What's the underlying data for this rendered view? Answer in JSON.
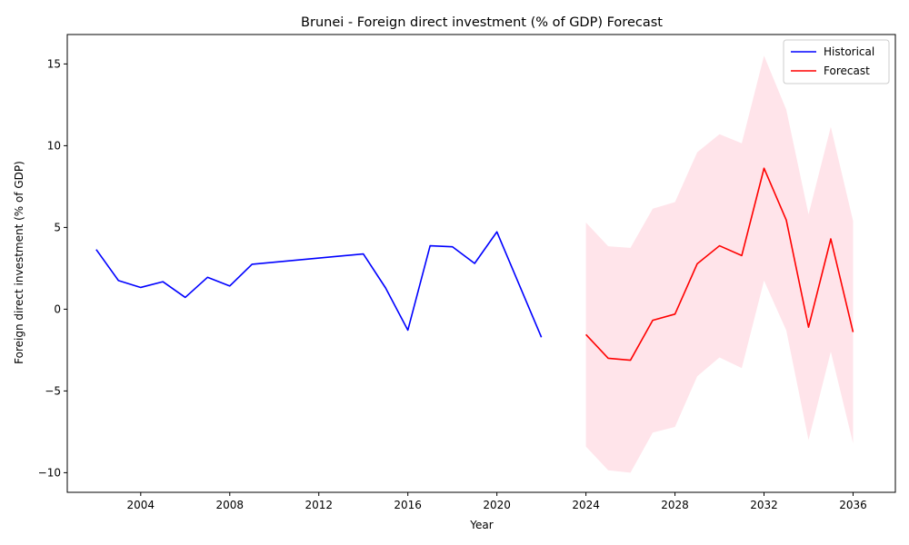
{
  "chart_data": {
    "type": "line",
    "title": "Brunei - Foreign direct investment (% of GDP) Forecast",
    "xlabel": "Year",
    "ylabel": "Foreign direct investment (% of GDP)",
    "xlim": [
      2000.7,
      2037.9
    ],
    "ylim": [
      -11.2,
      16.8
    ],
    "x_ticks": [
      2004,
      2008,
      2012,
      2016,
      2020,
      2024,
      2028,
      2032,
      2036
    ],
    "y_ticks": [
      -10,
      -5,
      0,
      5,
      10,
      15
    ],
    "grid": false,
    "legend_position": "top-right",
    "colors": {
      "historical": "#0000ff",
      "forecast": "#ff0000",
      "band": "#ffe4ea"
    },
    "series": [
      {
        "name": "Historical",
        "points": [
          [
            2002,
            3.65
          ],
          [
            2003,
            1.75
          ],
          [
            2004,
            1.33
          ],
          [
            2005,
            1.68
          ],
          [
            2006,
            0.72
          ],
          [
            2007,
            1.95
          ],
          [
            2008,
            1.42
          ],
          [
            2009,
            2.75
          ],
          [
            2014,
            3.38
          ],
          [
            2015,
            1.3
          ],
          [
            2016,
            -1.28
          ],
          [
            2017,
            3.88
          ],
          [
            2018,
            3.82
          ],
          [
            2019,
            2.8
          ],
          [
            2020,
            4.73
          ],
          [
            2022,
            -1.72
          ]
        ]
      },
      {
        "name": "Forecast",
        "points": [
          [
            2024,
            -1.55
          ],
          [
            2025,
            -3.0
          ],
          [
            2026,
            -3.12
          ],
          [
            2027,
            -0.68
          ],
          [
            2028,
            -0.3
          ],
          [
            2029,
            2.78
          ],
          [
            2030,
            3.88
          ],
          [
            2031,
            3.28
          ],
          [
            2032,
            8.62
          ],
          [
            2033,
            5.45
          ],
          [
            2034,
            -1.1
          ],
          [
            2035,
            4.3
          ],
          [
            2036,
            -1.4
          ]
        ]
      }
    ],
    "confidence_band": {
      "x": [
        2024,
        2025,
        2026,
        2027,
        2028,
        2029,
        2030,
        2031,
        2032,
        2033,
        2034,
        2035,
        2036
      ],
      "upper": [
        5.3,
        3.85,
        3.75,
        6.15,
        6.55,
        9.6,
        10.7,
        10.15,
        15.5,
        12.2,
        5.8,
        11.15,
        5.4
      ],
      "lower": [
        -8.4,
        -9.85,
        -10.0,
        -7.55,
        -7.2,
        -4.1,
        -2.95,
        -3.6,
        1.75,
        -1.3,
        -8.0,
        -2.6,
        -8.2
      ]
    }
  }
}
